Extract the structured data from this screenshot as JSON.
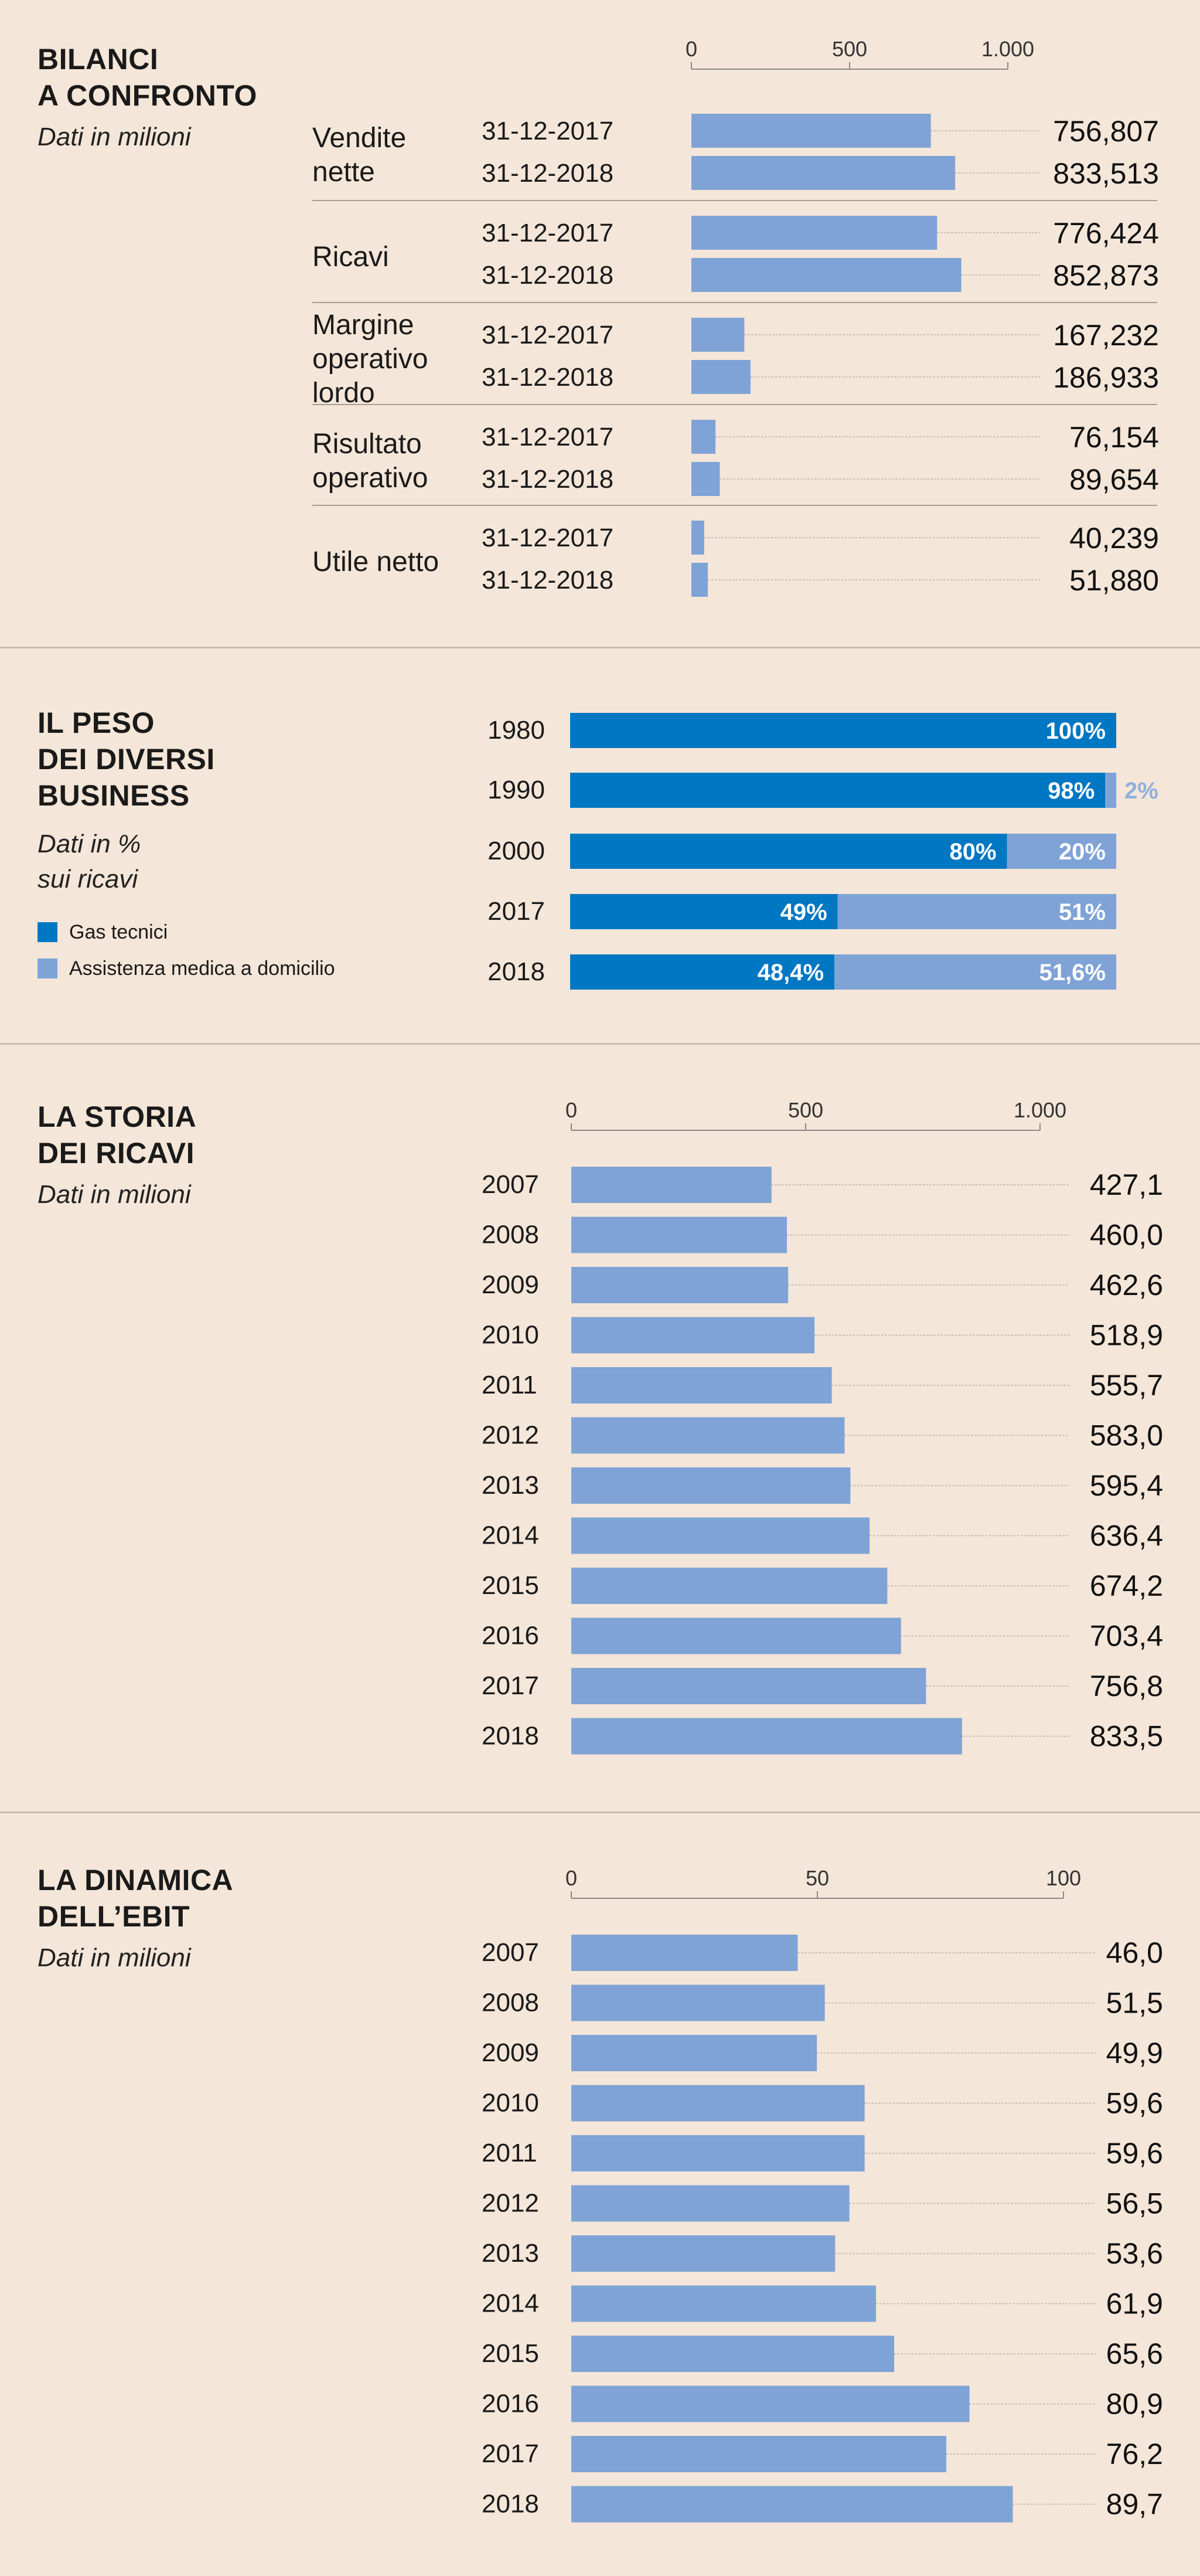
{
  "colors": {
    "bar": "#7fa3d6",
    "dark": "#0077c2",
    "light": "#7fa3d6",
    "leader": "#b5aca3",
    "axis": "#8a8a8a"
  },
  "sections": {
    "bilanci": {
      "title_l1": "BILANCI",
      "title_l2": "A CONFRONTO",
      "subtitle": "Dati in milioni"
    },
    "peso": {
      "title_l1": "IL PESO",
      "title_l2": "DEI DIVERSI",
      "title_l3": "BUSINESS",
      "subtitle_l1": "Dati in %",
      "subtitle_l2": "sui ricavi",
      "legend": [
        {
          "label": "Gas tecnici"
        },
        {
          "label": "Assistenza medica a domicilio"
        }
      ]
    },
    "storia": {
      "title_l1": "LA STORIA",
      "title_l2": "DEI RICAVI",
      "subtitle": "Dati in milioni"
    },
    "ebit": {
      "title_l1": "LA DINAMICA",
      "title_l2": "DELL’EBIT",
      "subtitle": "Dati in milioni"
    }
  },
  "chart_data": [
    {
      "type": "bar",
      "title": "BILANCI A CONFRONTO",
      "subtitle": "Dati in milioni",
      "ticks": [
        "0",
        "500",
        "1.000"
      ],
      "xlim": [
        0,
        1000
      ],
      "groups": [
        {
          "metric_lines": [
            "Vendite",
            "nette"
          ],
          "rows": [
            {
              "date": "31-12-2017",
              "value": 756.807,
              "label": "756,807"
            },
            {
              "date": "31-12-2018",
              "value": 833.513,
              "label": "833,513"
            }
          ]
        },
        {
          "metric_lines": [
            "Ricavi"
          ],
          "rows": [
            {
              "date": "31-12-2017",
              "value": 776.424,
              "label": "776,424"
            },
            {
              "date": "31-12-2018",
              "value": 852.873,
              "label": "852,873"
            }
          ]
        },
        {
          "metric_lines": [
            "Margine",
            "operativo",
            "lordo"
          ],
          "rows": [
            {
              "date": "31-12-2017",
              "value": 167.232,
              "label": "167,232"
            },
            {
              "date": "31-12-2018",
              "value": 186.933,
              "label": "186,933"
            }
          ]
        },
        {
          "metric_lines": [
            "Risultato",
            "operativo"
          ],
          "rows": [
            {
              "date": "31-12-2017",
              "value": 76.154,
              "label": "76,154"
            },
            {
              "date": "31-12-2018",
              "value": 89.654,
              "label": "89,654"
            }
          ]
        },
        {
          "metric_lines": [
            "Utile netto"
          ],
          "rows": [
            {
              "date": "31-12-2017",
              "value": 40.239,
              "label": "40,239"
            },
            {
              "date": "31-12-2018",
              "value": 51.88,
              "label": "51,880"
            }
          ]
        }
      ]
    },
    {
      "type": "bar",
      "stacked": true,
      "title": "IL PESO DEI DIVERSI BUSINESS",
      "subtitle": "Dati in % sui ricavi",
      "series": [
        {
          "name": "Gas tecnici"
        },
        {
          "name": "Assistenza medica a domicilio"
        }
      ],
      "rows": [
        {
          "year": "1980",
          "gas": 100,
          "med": 0,
          "gas_label": "100%",
          "med_label": ""
        },
        {
          "year": "1990",
          "gas": 98,
          "med": 2,
          "gas_label": "98%",
          "med_label": "2%"
        },
        {
          "year": "2000",
          "gas": 80,
          "med": 20,
          "gas_label": "80%",
          "med_label": "20%"
        },
        {
          "year": "2017",
          "gas": 49,
          "med": 51,
          "gas_label": "49%",
          "med_label": "51%"
        },
        {
          "year": "2018",
          "gas": 48.4,
          "med": 51.6,
          "gas_label": "48,4%",
          "med_label": "51,6%"
        }
      ]
    },
    {
      "type": "bar",
      "title": "LA STORIA DEI RICAVI",
      "subtitle": "Dati in milioni",
      "ticks": [
        "0",
        "500",
        "1.000"
      ],
      "xlim": [
        0,
        1000
      ],
      "rows": [
        {
          "year": "2007",
          "value": 427.1,
          "label": "427,1"
        },
        {
          "year": "2008",
          "value": 460.0,
          "label": "460,0"
        },
        {
          "year": "2009",
          "value": 462.6,
          "label": "462,6"
        },
        {
          "year": "2010",
          "value": 518.9,
          "label": "518,9"
        },
        {
          "year": "2011",
          "value": 555.7,
          "label": "555,7"
        },
        {
          "year": "2012",
          "value": 583.0,
          "label": "583,0"
        },
        {
          "year": "2013",
          "value": 595.4,
          "label": "595,4"
        },
        {
          "year": "2014",
          "value": 636.4,
          "label": "636,4"
        },
        {
          "year": "2015",
          "value": 674.2,
          "label": "674,2"
        },
        {
          "year": "2016",
          "value": 703.4,
          "label": "703,4"
        },
        {
          "year": "2017",
          "value": 756.8,
          "label": "756,8"
        },
        {
          "year": "2018",
          "value": 833.5,
          "label": "833,5"
        }
      ]
    },
    {
      "type": "bar",
      "title": "LA DINAMICA DELL’EBIT",
      "subtitle": "Dati in milioni",
      "ticks": [
        "0",
        "50",
        "100"
      ],
      "xlim": [
        0,
        100
      ],
      "rows": [
        {
          "year": "2007",
          "value": 46.0,
          "label": "46,0"
        },
        {
          "year": "2008",
          "value": 51.5,
          "label": "51,5"
        },
        {
          "year": "2009",
          "value": 49.9,
          "label": "49,9"
        },
        {
          "year": "2010",
          "value": 59.6,
          "label": "59,6"
        },
        {
          "year": "2011",
          "value": 59.6,
          "label": "59,6"
        },
        {
          "year": "2012",
          "value": 56.5,
          "label": "56,5"
        },
        {
          "year": "2013",
          "value": 53.6,
          "label": "53,6"
        },
        {
          "year": "2014",
          "value": 61.9,
          "label": "61,9"
        },
        {
          "year": "2015",
          "value": 65.6,
          "label": "65,6"
        },
        {
          "year": "2016",
          "value": 80.9,
          "label": "80,9"
        },
        {
          "year": "2017",
          "value": 76.2,
          "label": "76,2"
        },
        {
          "year": "2018",
          "value": 89.7,
          "label": "89,7"
        }
      ]
    }
  ]
}
